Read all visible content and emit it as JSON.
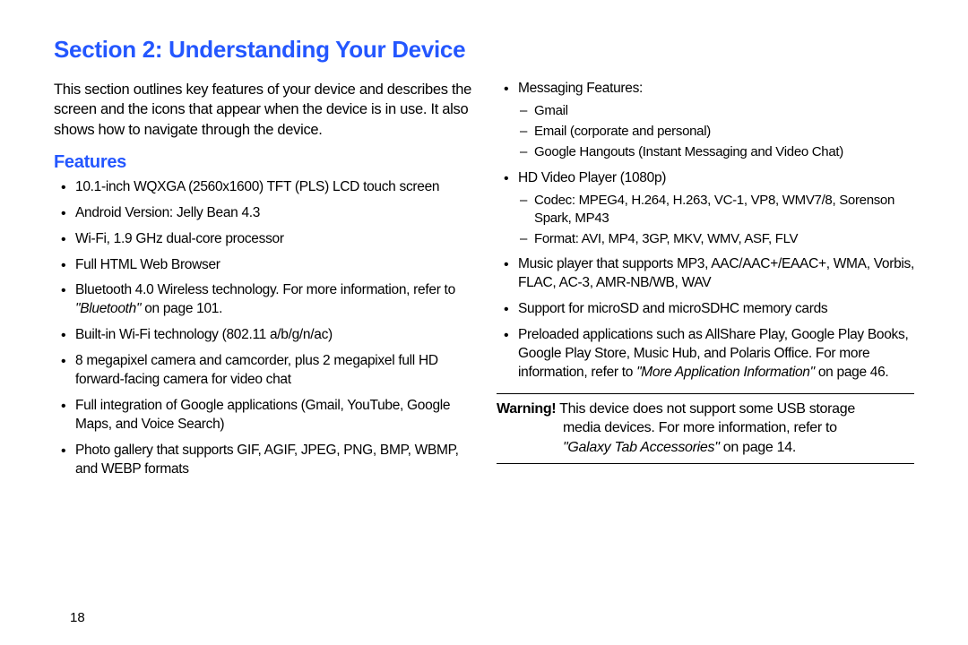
{
  "colors": {
    "heading_blue": "#2457ff",
    "text_black": "#000000",
    "background": "#ffffff",
    "rule_color": "#000000"
  },
  "typography": {
    "section_title_size_pt": 20,
    "feature_heading_size_pt": 15,
    "body_size_pt": 12,
    "bullet_size_pt": 11.5,
    "font_family": "Arial/Helvetica condensed-like"
  },
  "section_title": "Section 2: Understanding Your Device",
  "intro": "This section outlines key features of your device and describes the screen and the icons that appear when the device is in use. It also shows how to navigate through the device.",
  "features_heading": "Features",
  "left_bullets": [
    {
      "text": "10.1-inch WQXGA (2560x1600) TFT (PLS) LCD touch screen"
    },
    {
      "text": "Android Version: Jelly Bean 4.3"
    },
    {
      "text": "Wi-Fi, 1.9 GHz dual-core processor"
    },
    {
      "text": "Full HTML Web Browser"
    },
    {
      "text_pre": "Bluetooth 4.0 Wireless technology. For more information, refer to ",
      "ref": "\"Bluetooth\"",
      "text_post": " on page 101."
    },
    {
      "text": "Built-in Wi-Fi technology (802.11 a/b/g/n/ac)"
    },
    {
      "text": "8 megapixel camera and camcorder, plus 2 megapixel full HD forward-facing camera for video chat"
    },
    {
      "text": "Full integration of Google applications (Gmail, YouTube, Google Maps, and Voice Search)"
    },
    {
      "text": "Photo gallery that supports GIF, AGIF, JPEG, PNG, BMP, WBMP, and WEBP formats"
    }
  ],
  "right_bullets": [
    {
      "text": "Messaging Features:",
      "sub": [
        "Gmail",
        "Email (corporate and personal)",
        "Google Hangouts (Instant Messaging and Video Chat)"
      ]
    },
    {
      "text": "HD Video Player (1080p)",
      "sub": [
        "Codec: MPEG4, H.264, H.263, VC-1, VP8, WMV7/8, Sorenson Spark, MP43",
        "Format: AVI, MP4, 3GP, MKV, WMV, ASF, FLV"
      ]
    },
    {
      "text": "Music player that supports MP3, AAC/AAC+/EAAC+, WMA, Vorbis, FLAC, AC-3, AMR-NB/WB, WAV"
    },
    {
      "text": "Support for microSD and microSDHC memory cards"
    },
    {
      "text_pre": "Preloaded applications such as AllShare Play, Google Play Books, Google Play Store, Music Hub, and Polaris Office. For more information, refer to ",
      "ref": "\"More Application Information\"",
      "text_post": " on page 46."
    }
  ],
  "warning": {
    "label": "Warning!",
    "line1": " This device does not support some USB storage",
    "line2_pre": "media devices. For more information, refer to ",
    "ref": "\"Galaxy Tab Accessories\"",
    "line2_post": " on page 14."
  },
  "page_number": "18"
}
